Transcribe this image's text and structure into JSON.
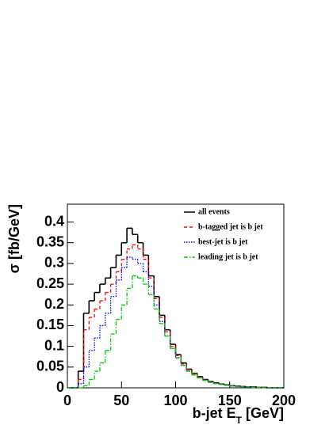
{
  "chart_data": {
    "type": "histogram",
    "x_label": [
      "b-jet E",
      "T",
      " [GeV]"
    ],
    "y_label": "σ [fb/GeV]",
    "bins": [
      0,
      5,
      10,
      15,
      20,
      25,
      30,
      35,
      40,
      45,
      50,
      55,
      60,
      65,
      70,
      75,
      80,
      85,
      90,
      95,
      100,
      105,
      110,
      115,
      120,
      125,
      130,
      135,
      140,
      145,
      150,
      155,
      160,
      165,
      170,
      175,
      180,
      185,
      190,
      195,
      200
    ],
    "series": [
      {
        "name": "all events",
        "color": "#000000",
        "linestyle": "solid",
        "values": [
          0,
          0,
          0.04,
          0.18,
          0.21,
          0.23,
          0.25,
          0.265,
          0.29,
          0.32,
          0.35,
          0.385,
          0.37,
          0.35,
          0.32,
          0.27,
          0.22,
          0.175,
          0.14,
          0.105,
          0.08,
          0.06,
          0.045,
          0.035,
          0.027,
          0.02,
          0.015,
          0.012,
          0.009,
          0.007,
          0.005,
          0.004,
          0.003,
          0.002,
          0.002,
          0.001,
          0.001,
          0,
          0,
          0
        ]
      },
      {
        "name": "b-tagged jet is b jet",
        "color": "#ff0000",
        "linestyle": "dashed",
        "values": [
          0,
          0,
          0.02,
          0.14,
          0.17,
          0.19,
          0.21,
          0.23,
          0.25,
          0.28,
          0.31,
          0.335,
          0.345,
          0.335,
          0.31,
          0.265,
          0.215,
          0.17,
          0.135,
          0.1,
          0.078,
          0.058,
          0.044,
          0.034,
          0.026,
          0.019,
          0.014,
          0.011,
          0.008,
          0.006,
          0.005,
          0.004,
          0.003,
          0.002,
          0.002,
          0.001,
          0.001,
          0,
          0,
          0
        ]
      },
      {
        "name": "best-jet is b jet",
        "color": "#0000ff",
        "linestyle": "dotted",
        "values": [
          0,
          0,
          0.01,
          0.05,
          0.09,
          0.12,
          0.15,
          0.18,
          0.22,
          0.26,
          0.29,
          0.315,
          0.31,
          0.3,
          0.28,
          0.245,
          0.2,
          0.16,
          0.125,
          0.095,
          0.072,
          0.054,
          0.04,
          0.031,
          0.024,
          0.018,
          0.013,
          0.01,
          0.008,
          0.006,
          0.004,
          0.003,
          0.002,
          0.002,
          0.001,
          0.001,
          0,
          0,
          0,
          0
        ]
      },
      {
        "name": "leading jet is b jet",
        "color": "#00cc00",
        "linestyle": "dashdot",
        "values": [
          0,
          0,
          0,
          0.005,
          0.02,
          0.04,
          0.06,
          0.09,
          0.13,
          0.165,
          0.2,
          0.24,
          0.27,
          0.265,
          0.25,
          0.225,
          0.19,
          0.155,
          0.125,
          0.095,
          0.073,
          0.055,
          0.041,
          0.031,
          0.024,
          0.018,
          0.013,
          0.01,
          0.008,
          0.006,
          0.004,
          0.003,
          0.002,
          0.002,
          0.001,
          0.001,
          0,
          0,
          0,
          0
        ]
      }
    ],
    "xlim": [
      0,
      200
    ],
    "xticks": [
      0,
      50,
      100,
      150,
      200
    ],
    "ylim": [
      0,
      0.443
    ],
    "yticks": [
      0,
      0.05,
      0.1,
      0.15,
      0.2,
      0.25,
      0.3,
      0.35,
      0.4
    ],
    "grid": false,
    "legend": "upper right"
  }
}
